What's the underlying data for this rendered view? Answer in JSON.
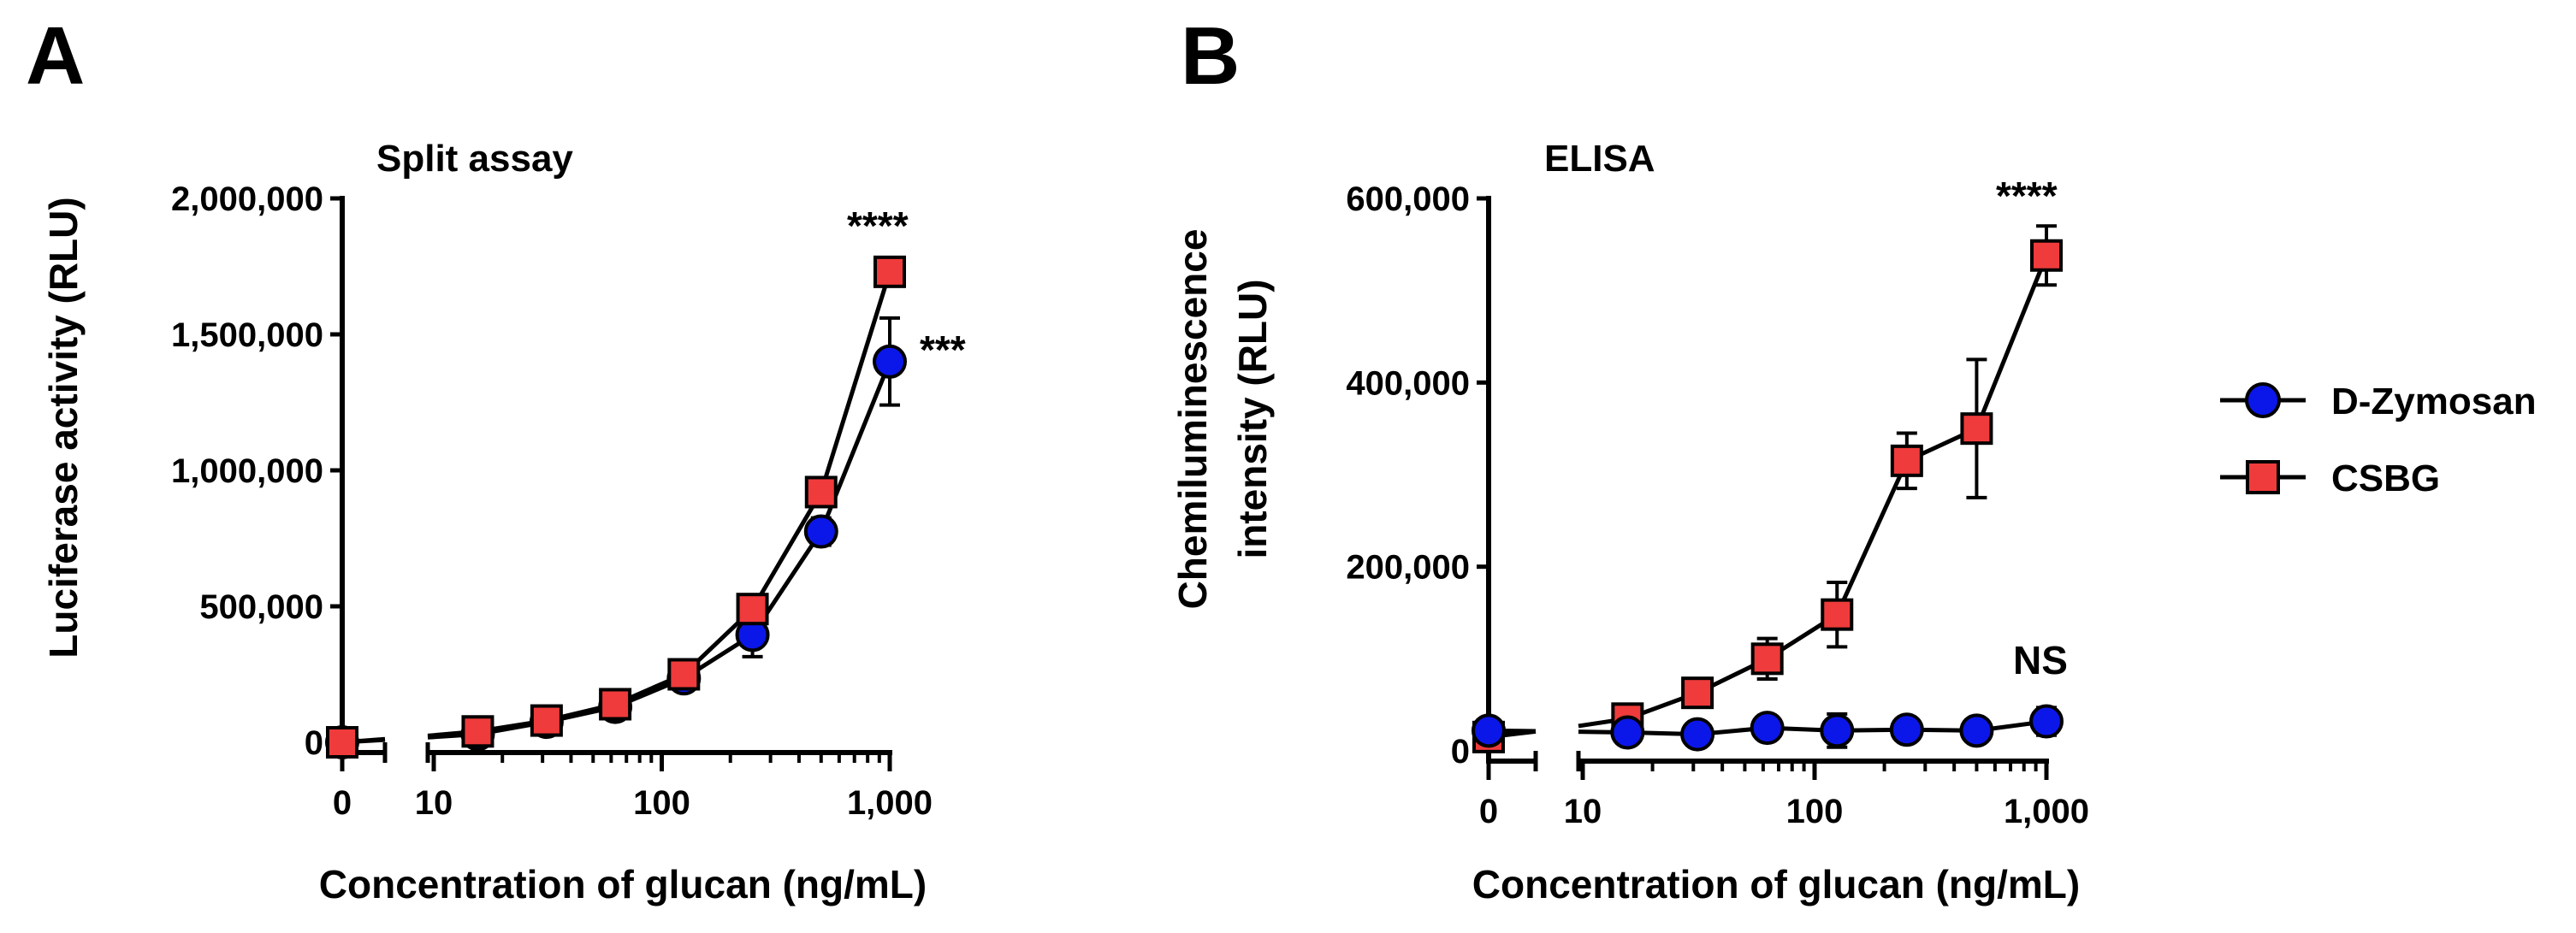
{
  "figure": {
    "legend": [
      {
        "name": "D-Zymosan",
        "marker": "circle",
        "color": "#0b17e8"
      },
      {
        "name": "CSBG",
        "marker": "square",
        "color": "#ef3b3b"
      }
    ]
  },
  "chart_data": [
    {
      "type": "line",
      "panel": "A",
      "title": "Split assay",
      "xlabel": "Concentration of glucan (ng/mL)",
      "ylabel": "Luciferase activity (RLU)",
      "xscale": "log with broken axis at 0",
      "xlim": [
        10,
        1000
      ],
      "ylim": [
        0,
        2000000
      ],
      "x_ticks": [
        "0",
        "10",
        "100",
        "1,000"
      ],
      "y_ticks": [
        "0",
        "500,000",
        "1,000,000",
        "1,500,000",
        "2,000,000"
      ],
      "y_tick_values": [
        0,
        500000,
        1000000,
        1500000,
        2000000
      ],
      "x": [
        0,
        15.6,
        31.25,
        62.5,
        125,
        250,
        500,
        1000
      ],
      "series": [
        {
          "name": "D-Zymosan",
          "values": [
            0,
            30000,
            75000,
            130000,
            235000,
            395000,
            775000,
            1400000
          ],
          "errors": [
            0,
            10000,
            15000,
            15000,
            25000,
            80000,
            50000,
            160000
          ]
        },
        {
          "name": "CSBG",
          "values": [
            0,
            40000,
            80000,
            140000,
            250000,
            490000,
            920000,
            1730000
          ],
          "errors": [
            0,
            10000,
            15000,
            20000,
            30000,
            40000,
            40000,
            30000
          ]
        }
      ],
      "annotations": [
        {
          "text": "****",
          "series": "CSBG",
          "x": 1000
        },
        {
          "text": "***",
          "series": "D-Zymosan",
          "x": 1000
        }
      ]
    },
    {
      "type": "line",
      "panel": "B",
      "title": "ELISA",
      "xlabel": "Concentration of glucan (ng/mL)",
      "ylabel_lines": [
        "Chemiluminescence",
        "intensity (RLU)"
      ],
      "xscale": "log with broken axis at 0",
      "xlim": [
        10,
        1000
      ],
      "ylim": [
        0,
        600000
      ],
      "x_ticks": [
        "0",
        "10",
        "100",
        "1,000"
      ],
      "y_ticks": [
        "0",
        "200,000",
        "400,000",
        "600,000"
      ],
      "y_tick_values": [
        0,
        200000,
        400000,
        600000
      ],
      "x": [
        0,
        15.6,
        31.25,
        62.5,
        125,
        250,
        500,
        1000
      ],
      "series": [
        {
          "name": "D-Zymosan",
          "values": [
            22000,
            20000,
            18000,
            25000,
            22000,
            23000,
            22000,
            32000
          ],
          "errors": [
            8000,
            8000,
            8000,
            10000,
            18000,
            10000,
            8000,
            15000
          ]
        },
        {
          "name": "CSBG",
          "values": [
            15000,
            35000,
            63000,
            100000,
            148000,
            315000,
            350000,
            538000
          ],
          "errors": [
            5000,
            8000,
            10000,
            22000,
            35000,
            30000,
            75000,
            32000
          ]
        }
      ],
      "annotations": [
        {
          "text": "****",
          "series": "CSBG",
          "x": 1000
        },
        {
          "text": "NS",
          "series": "D-Zymosan",
          "x": 1000
        }
      ]
    }
  ]
}
